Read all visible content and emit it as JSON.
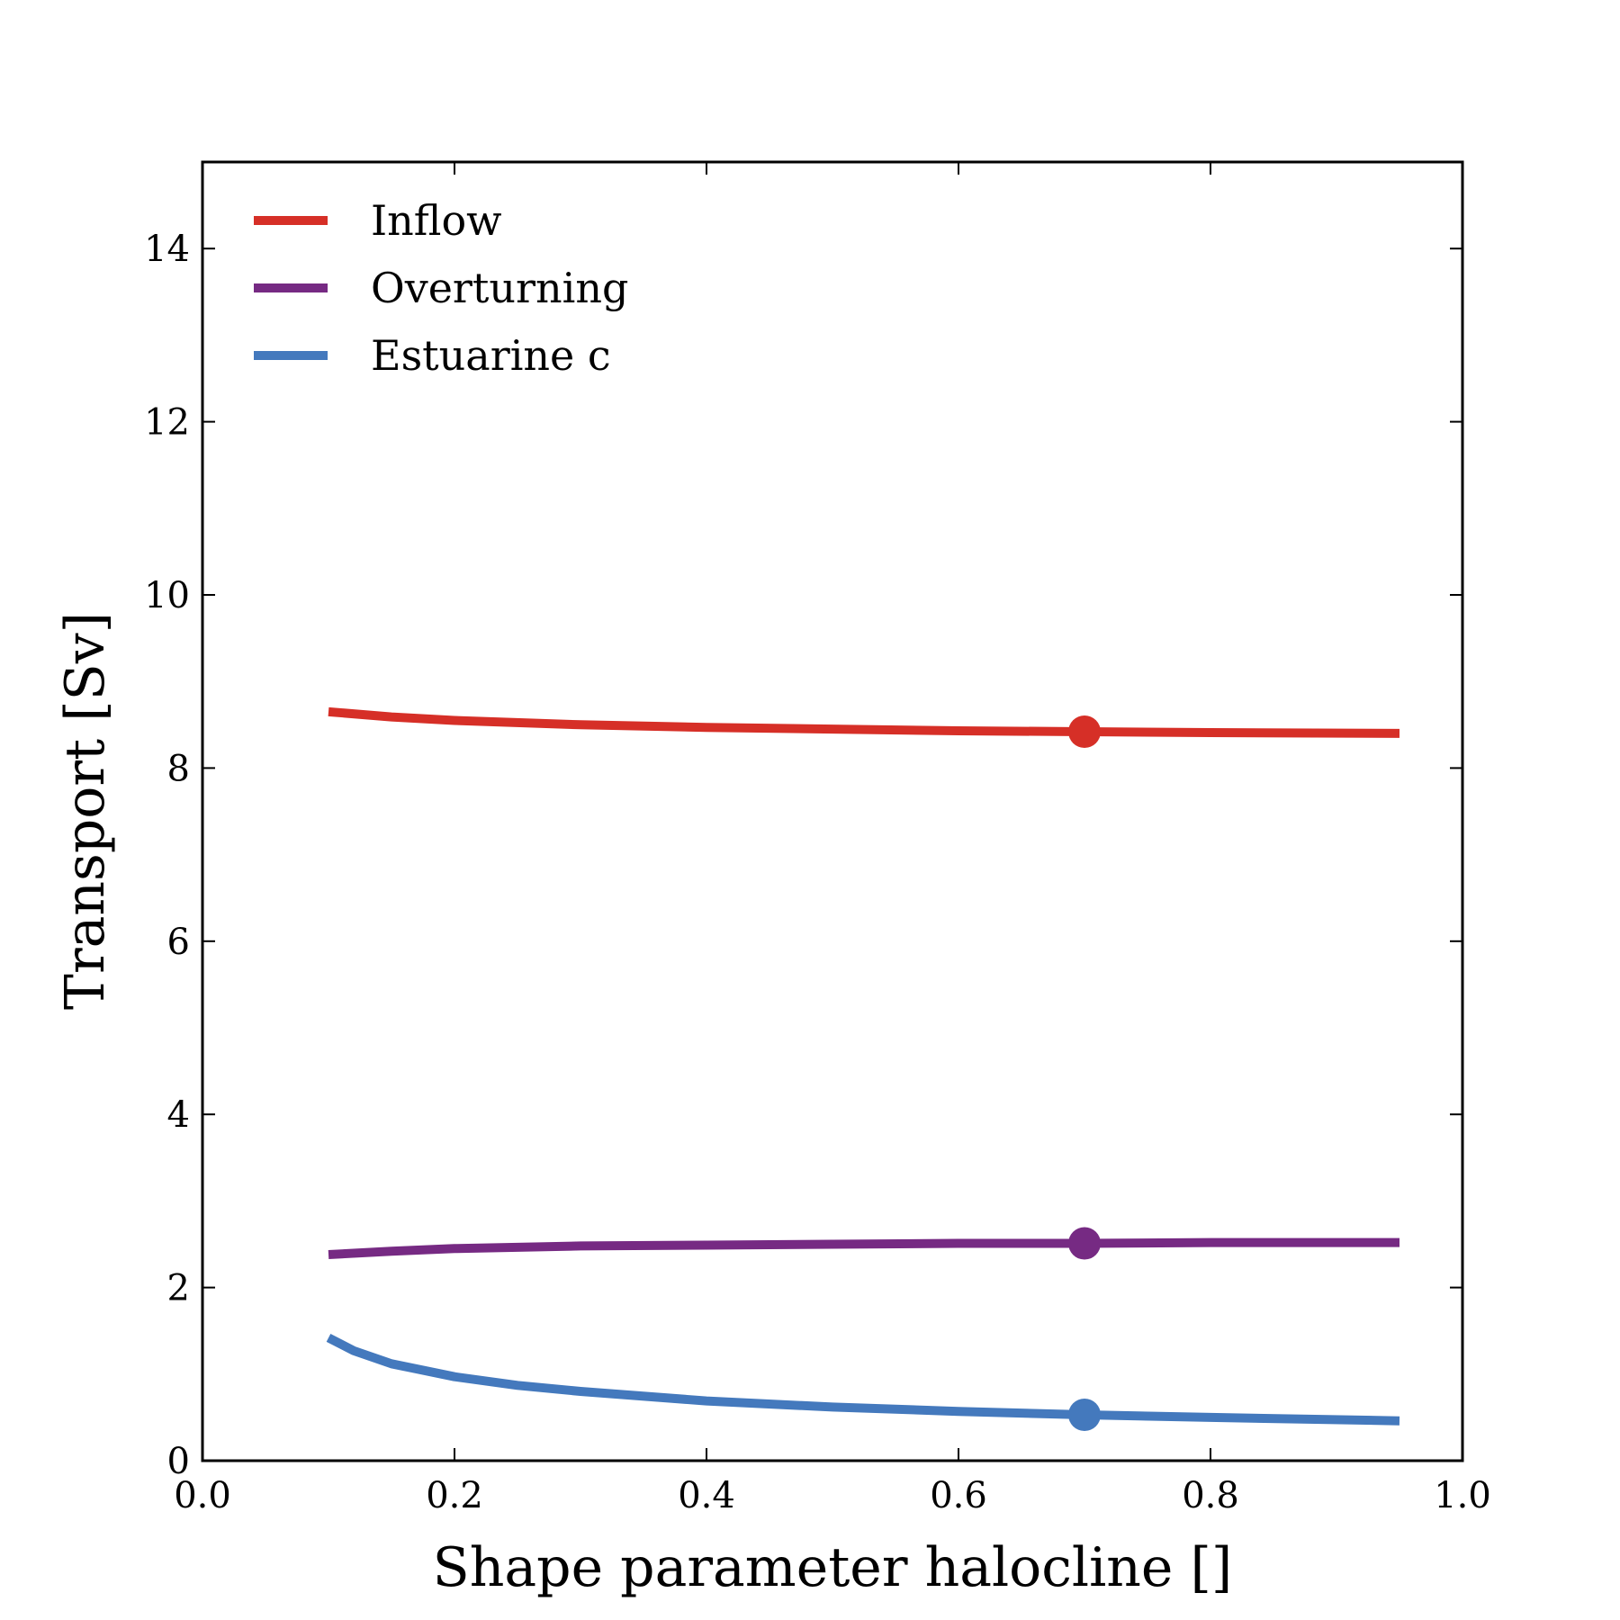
{
  "chart_data": {
    "type": "line",
    "title": "",
    "xlabel": "Shape parameter halocline []",
    "ylabel": "Transport [Sv]",
    "xlim": [
      0.0,
      1.0
    ],
    "ylim": [
      0,
      15
    ],
    "xticks": [
      "0.0",
      "0.2",
      "0.4",
      "0.6",
      "0.8",
      "1.0"
    ],
    "yticks": [
      "0",
      "2",
      "4",
      "6",
      "8",
      "10",
      "12",
      "14"
    ],
    "grid": false,
    "legend": "top-left",
    "series": [
      {
        "name": "Inflow",
        "color": "#d62f27",
        "x": [
          0.1,
          0.15,
          0.2,
          0.3,
          0.4,
          0.5,
          0.6,
          0.7,
          0.8,
          0.95
        ],
        "values": [
          8.65,
          8.59,
          8.55,
          8.5,
          8.47,
          8.45,
          8.43,
          8.42,
          8.41,
          8.4
        ],
        "marker": {
          "x": 0.7,
          "y": 8.42
        }
      },
      {
        "name": "Overturning",
        "color": "#762a83",
        "x": [
          0.1,
          0.15,
          0.2,
          0.3,
          0.4,
          0.5,
          0.6,
          0.7,
          0.8,
          0.95
        ],
        "values": [
          2.38,
          2.42,
          2.45,
          2.48,
          2.49,
          2.5,
          2.51,
          2.51,
          2.52,
          2.52
        ],
        "marker": {
          "x": 0.7,
          "y": 2.51
        }
      },
      {
        "name": "Estuarine c",
        "color": "#4479bd",
        "x": [
          0.1,
          0.12,
          0.15,
          0.2,
          0.25,
          0.3,
          0.4,
          0.5,
          0.6,
          0.7,
          0.8,
          0.95
        ],
        "values": [
          1.42,
          1.27,
          1.12,
          0.97,
          0.87,
          0.8,
          0.69,
          0.62,
          0.57,
          0.53,
          0.5,
          0.46
        ],
        "marker": {
          "x": 0.7,
          "y": 0.53
        }
      }
    ]
  }
}
